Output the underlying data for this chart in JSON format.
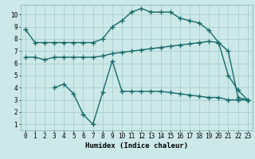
{
  "background_color": "#cce8e8",
  "grid_color": "#aad0d0",
  "line_color": "#1a6b6b",
  "xlabel": "Humidex (Indice chaleur)",
  "xlim": [
    -0.5,
    23.5
  ],
  "ylim": [
    0.5,
    10.8
  ],
  "xticks": [
    0,
    1,
    2,
    3,
    4,
    5,
    6,
    7,
    8,
    9,
    10,
    11,
    12,
    13,
    14,
    15,
    16,
    17,
    18,
    19,
    20,
    21,
    22,
    23
  ],
  "yticks": [
    1,
    2,
    3,
    4,
    5,
    6,
    7,
    8,
    9,
    10
  ],
  "line1_x": [
    0,
    1,
    2,
    3,
    4,
    5,
    6,
    7,
    8,
    9,
    10,
    11,
    12,
    13,
    14,
    15,
    16,
    17,
    18,
    19,
    20,
    21,
    22,
    23
  ],
  "line1_y": [
    8.8,
    7.7,
    7.7,
    7.7,
    7.7,
    7.7,
    7.7,
    7.7,
    8.0,
    9.0,
    9.5,
    10.2,
    10.5,
    10.2,
    10.2,
    10.2,
    9.7,
    9.5,
    9.3,
    8.7,
    7.7,
    5.0,
    3.8,
    3.0
  ],
  "line2_x": [
    0,
    1,
    2,
    3,
    4,
    5,
    6,
    7,
    8,
    9,
    10,
    11,
    12,
    13,
    14,
    15,
    16,
    17,
    18,
    19,
    20,
    21,
    22,
    23
  ],
  "line2_y": [
    6.5,
    6.5,
    6.3,
    6.5,
    6.5,
    6.5,
    6.5,
    6.5,
    6.6,
    6.8,
    6.9,
    7.0,
    7.1,
    7.2,
    7.3,
    7.4,
    7.5,
    7.6,
    7.7,
    7.8,
    7.7,
    7.0,
    3.2,
    3.0
  ],
  "line3_x": [
    3,
    4,
    5,
    6,
    7,
    8,
    9,
    10,
    11,
    12,
    13,
    14,
    15,
    16,
    17,
    18,
    19,
    20,
    21,
    22,
    23
  ],
  "line3_y": [
    4.0,
    4.3,
    3.5,
    1.8,
    1.0,
    3.6,
    6.2,
    3.7,
    3.7,
    3.7,
    3.7,
    3.7,
    3.6,
    3.5,
    3.4,
    3.3,
    3.2,
    3.2,
    3.0,
    3.0,
    3.0
  ],
  "font_family": "monospace",
  "tick_fontsize": 5.5,
  "xlabel_fontsize": 6.5
}
